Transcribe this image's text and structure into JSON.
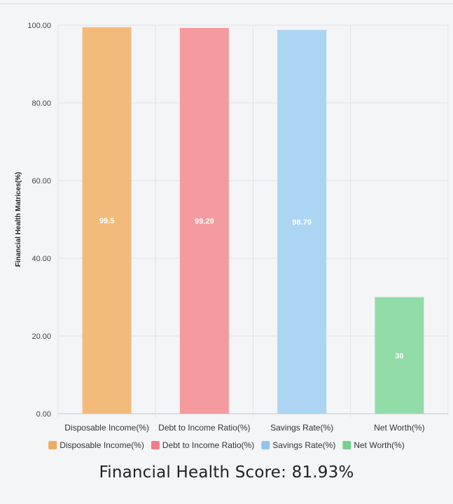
{
  "chart_data": {
    "type": "bar",
    "categories": [
      "Disposable Income(%)",
      "Debt to Income Ratio(%)",
      "Savings Rate(%)",
      "Net Worth(%)"
    ],
    "values": [
      99.5,
      99.29,
      98.79,
      30
    ],
    "value_labels": [
      "99.5",
      "99.29",
      "98.79",
      "30"
    ],
    "colors": [
      "#f3bb7b",
      "#f59a9e",
      "#abd5f3",
      "#92dca7"
    ],
    "legend_colors": [
      "#f0ab5f",
      "#f07d84",
      "#8ec5ef",
      "#73d290"
    ],
    "ylabel": "Financial Health Matrices(%)",
    "xlabel": "",
    "ylim": [
      0,
      100
    ],
    "yticks": [
      "0.00",
      "20.00",
      "40.00",
      "60.00",
      "80.00",
      "100.00"
    ],
    "legend": [
      "Disposable Income(%)",
      "Debt to Income Ratio(%)",
      "Savings Rate(%)",
      "Net Worth(%)"
    ],
    "legend_position": "bottom"
  },
  "score": {
    "text": "Financial Health Score: 81.93%"
  }
}
